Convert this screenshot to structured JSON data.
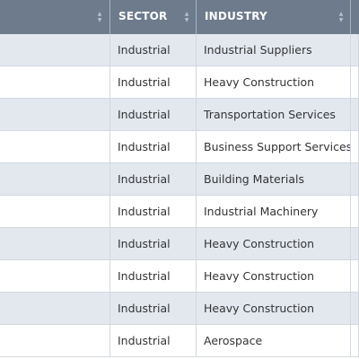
{
  "table": {
    "columns": [
      {
        "label": ""
      },
      {
        "label": "SECTOR"
      },
      {
        "label": "INDUSTRY"
      },
      {
        "label": ""
      }
    ],
    "rows": [
      {
        "sector": "Industrial",
        "industry": "Industrial Suppliers"
      },
      {
        "sector": "Industrial",
        "industry": "Heavy Construction"
      },
      {
        "sector": "Industrial",
        "industry": "Transportation Services"
      },
      {
        "sector": "Industrial",
        "industry": "Business Support Services"
      },
      {
        "sector": "Industrial",
        "industry": "Building Materials"
      },
      {
        "sector": "Industrial",
        "industry": "Industrial Machinery"
      },
      {
        "sector": "Industrial",
        "industry": "Heavy Construction"
      },
      {
        "sector": "Industrial",
        "industry": "Heavy Construction"
      },
      {
        "sector": "Industrial",
        "industry": "Heavy Construction"
      },
      {
        "sector": "Industrial",
        "industry": "Aerospace"
      }
    ]
  },
  "colors": {
    "header_bg": "#6d7b8c",
    "row_alt_bg": "#e3e8ef",
    "row_bg": "#ffffff"
  },
  "icons": {
    "sort": "sort-arrows-icon"
  }
}
